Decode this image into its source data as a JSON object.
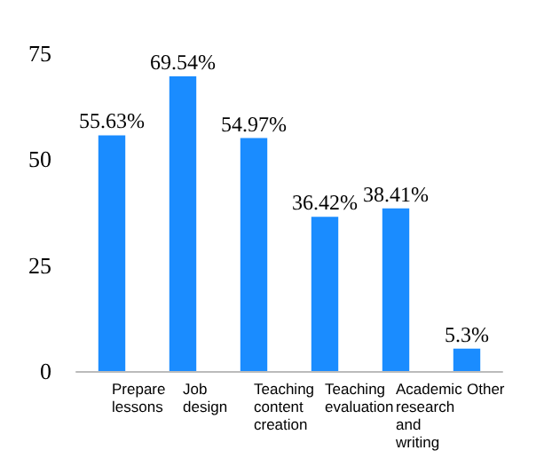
{
  "chart_data": {
    "type": "bar",
    "categories": [
      "Prepare lessons",
      "Job design",
      "Teaching content creation",
      "Teaching evaluation",
      "Academic research and writing",
      "Other"
    ],
    "values": [
      55.63,
      69.54,
      54.97,
      36.42,
      38.41,
      5.3
    ],
    "value_labels": [
      "55.63%",
      "69.54%",
      "54.97%",
      "36.42%",
      "38.41%",
      "5.3%"
    ],
    "color": "#1a8cff",
    "ylim": [
      0,
      75
    ],
    "yticks": [
      0,
      25,
      50,
      75
    ],
    "grid": false
  }
}
